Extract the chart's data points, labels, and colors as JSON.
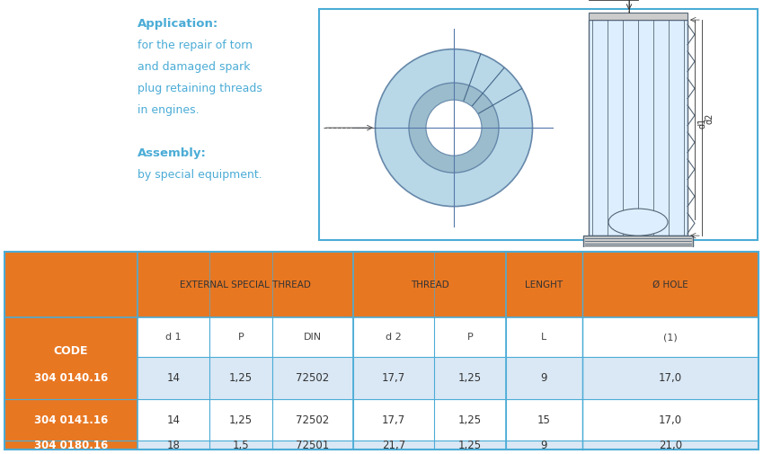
{
  "app_text_line1": "Application:",
  "app_text_line2": "for the repair of torn",
  "app_text_line3": "and damaged spark",
  "app_text_line4": "plug retaining threads",
  "app_text_line5": "in engines.",
  "app_text_line6": "Assembly:",
  "app_text_line7": "by special equipment.",
  "header_bg": "#E87722",
  "header_text_color": "#FFFFFF",
  "table_border_color": "#4BACD6",
  "subheader1": "EXTERNAL SPECIAL THREAD",
  "subheader2": "THREAD",
  "subheader3": "LENGHT",
  "subheader4": "Ø HOLE",
  "rows": [
    [
      "304 0140.16",
      "14",
      "1,25",
      "72502",
      "17,7",
      "1,25",
      "9",
      "17,0"
    ],
    [
      "304 0141.16",
      "14",
      "1,25",
      "72502",
      "17,7",
      "1,25",
      "15",
      "17,0"
    ],
    [
      "304 0180.16",
      "18",
      "1,5",
      "72501",
      "21,7",
      "1,25",
      "9",
      "21,0"
    ]
  ],
  "app_text_color": "#4BACD6",
  "diagram_border_color": "#4BACD6",
  "code_col_bold_color": "#2B5B8A",
  "diagram_fill": "#B8D8E8",
  "diagram_line": "#6688AA",
  "side_fill": "#DDEEFF",
  "side_line": "#556677"
}
